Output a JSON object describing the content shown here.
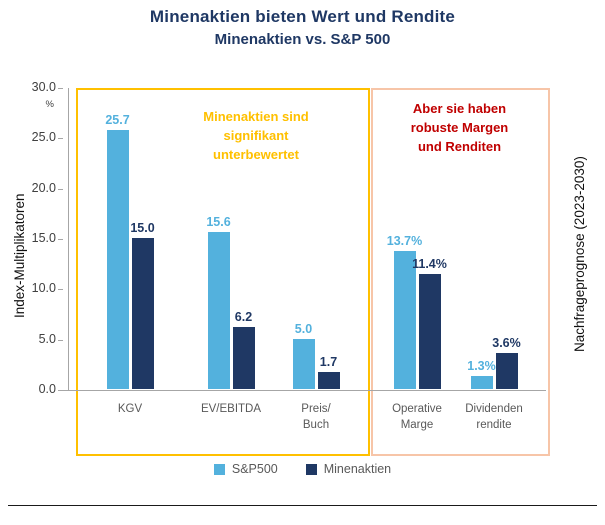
{
  "title": "Minenaktien bieten Wert und Rendite",
  "subtitle": "Minenaktien vs. S&P 500",
  "left_axis_label": "Index-Multiplikatoren",
  "right_label": "Nachfrageprognose (2023-2030)",
  "annotations": {
    "left": {
      "lines": [
        "Minenaktien sind",
        "signifikant",
        "unterbewertet"
      ],
      "color": "#FFC000"
    },
    "right": {
      "lines": [
        "Aber sie haben",
        "robuste Margen",
        "und Renditen"
      ],
      "color": "#C00000"
    }
  },
  "colors": {
    "title": "#1F3864",
    "sp500": "#53B1DD",
    "minenaktien": "#1F3864",
    "yellow_box": "#FFC000",
    "salmon_box": "#F7C5A8",
    "red_text": "#C00000"
  },
  "chart_data": {
    "type": "bar",
    "title": "Minenaktien bieten Wert und Rendite",
    "subtitle": "Minenaktien vs. S&P 500",
    "ylabel": "Index-Multiplikatoren",
    "xlabel": "",
    "ylim": [
      0,
      30
    ],
    "y_ticks": [
      "30.0",
      "25.0",
      "20.0",
      "15.0",
      "10.0",
      "5.0",
      "0.0"
    ],
    "y_unit": "%",
    "grid": false,
    "legend_position": "bottom",
    "categories": [
      "KGV",
      "EV/EBITDA",
      "Preis/Buch",
      "Operative Marge",
      "Dividendenrendite"
    ],
    "category_display": [
      [
        "KGV"
      ],
      [
        "EV/EBITDA"
      ],
      [
        "Preis/",
        "Buch"
      ],
      [
        "Operative",
        "Marge"
      ],
      [
        "Dividenden",
        "rendite"
      ]
    ],
    "series": [
      {
        "name": "S&P500",
        "color": "#53B1DD",
        "values": [
          25.7,
          15.6,
          5.0,
          13.7,
          1.3
        ],
        "labels": [
          "25.7",
          "15.6",
          "5.0",
          "13.7%",
          "1.3%"
        ]
      },
      {
        "name": "Minenaktien",
        "color": "#1F3864",
        "values": [
          15.0,
          6.2,
          1.7,
          11.4,
          3.6
        ],
        "labels": [
          "15.0",
          "6.2",
          "1.7",
          "11.4%",
          "3.6%"
        ]
      }
    ]
  }
}
